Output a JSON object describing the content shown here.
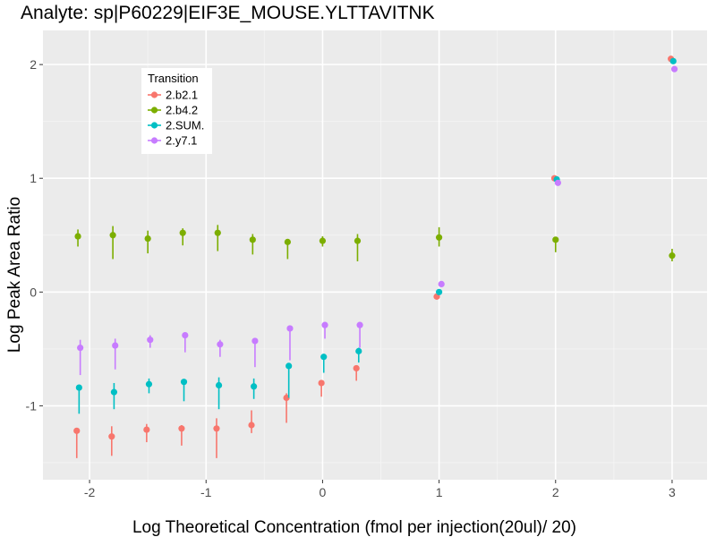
{
  "chart_data": {
    "type": "scatter",
    "title": "Analyte: sp|P60229|EIF3E_MOUSE.YLTTAVITNK",
    "xlabel": "Log Theoretical Concentration (fmol per injection(20ul)/ 20)",
    "ylabel": "Log Peak Area Ratio",
    "xlim": [
      -2.4,
      3.3
    ],
    "ylim": [
      -1.65,
      2.3
    ],
    "x_ticks": [
      -2,
      -1,
      0,
      1,
      2,
      3
    ],
    "x_tick_labels": [
      "-2",
      "-1",
      "0",
      "1",
      "2",
      "3"
    ],
    "y_ticks": [
      -1,
      0,
      1,
      2
    ],
    "y_tick_labels": [
      "-1",
      "0",
      "1",
      "2"
    ],
    "x_minor_ticks": [
      -1.5,
      -0.5,
      0.5,
      1.5,
      2.5
    ],
    "y_minor_ticks": [
      -1.5,
      -0.5,
      0.5,
      1.5
    ],
    "grid": true,
    "legend": {
      "title": "Transition",
      "placement": "top-left"
    },
    "series": [
      {
        "name": "2.b2.1",
        "color": "#F8766D",
        "points": [
          {
            "x": -2.11,
            "y": -1.22,
            "lo": -1.46,
            "hi": -1.22
          },
          {
            "x": -1.81,
            "y": -1.27,
            "lo": -1.44,
            "hi": -1.18
          },
          {
            "x": -1.51,
            "y": -1.21,
            "lo": -1.32,
            "hi": -1.16
          },
          {
            "x": -1.21,
            "y": -1.2,
            "lo": -1.35,
            "hi": -1.17
          },
          {
            "x": -0.91,
            "y": -1.2,
            "lo": -1.46,
            "hi": -1.11
          },
          {
            "x": -0.61,
            "y": -1.17,
            "lo": -1.24,
            "hi": -1.04
          },
          {
            "x": -0.31,
            "y": -0.93,
            "lo": -1.15,
            "hi": -0.89
          },
          {
            "x": -0.01,
            "y": -0.8,
            "lo": -0.92,
            "hi": -0.78
          },
          {
            "x": 0.29,
            "y": -0.67,
            "lo": -0.78,
            "hi": -0.65
          },
          {
            "x": 0.98,
            "y": -0.04,
            "lo": -0.06,
            "hi": -0.02
          },
          {
            "x": 1.99,
            "y": 1.0,
            "lo": 0.99,
            "hi": 1.01
          },
          {
            "x": 2.99,
            "y": 2.05,
            "lo": 2.04,
            "hi": 2.06
          }
        ]
      },
      {
        "name": "2.b4.2",
        "color": "#7CAE00",
        "points": [
          {
            "x": -2.1,
            "y": 0.49,
            "lo": 0.4,
            "hi": 0.55
          },
          {
            "x": -1.8,
            "y": 0.5,
            "lo": 0.29,
            "hi": 0.58
          },
          {
            "x": -1.5,
            "y": 0.47,
            "lo": 0.34,
            "hi": 0.54
          },
          {
            "x": -1.2,
            "y": 0.52,
            "lo": 0.41,
            "hi": 0.56
          },
          {
            "x": -0.9,
            "y": 0.52,
            "lo": 0.36,
            "hi": 0.59
          },
          {
            "x": -0.6,
            "y": 0.46,
            "lo": 0.33,
            "hi": 0.51
          },
          {
            "x": -0.3,
            "y": 0.44,
            "lo": 0.29,
            "hi": 0.46
          },
          {
            "x": 0.0,
            "y": 0.45,
            "lo": 0.4,
            "hi": 0.49
          },
          {
            "x": 0.3,
            "y": 0.45,
            "lo": 0.27,
            "hi": 0.51
          },
          {
            "x": 1.0,
            "y": 0.48,
            "lo": 0.4,
            "hi": 0.57
          },
          {
            "x": 2.0,
            "y": 0.46,
            "lo": 0.35,
            "hi": 0.48
          },
          {
            "x": 3.0,
            "y": 0.32,
            "lo": 0.27,
            "hi": 0.38
          }
        ]
      },
      {
        "name": "2.SUM.",
        "color": "#00BFC4",
        "points": [
          {
            "x": -2.09,
            "y": -0.84,
            "lo": -1.07,
            "hi": -0.82
          },
          {
            "x": -1.79,
            "y": -0.88,
            "lo": -1.03,
            "hi": -0.8
          },
          {
            "x": -1.49,
            "y": -0.81,
            "lo": -0.89,
            "hi": -0.76
          },
          {
            "x": -1.19,
            "y": -0.79,
            "lo": -0.96,
            "hi": -0.77
          },
          {
            "x": -0.89,
            "y": -0.82,
            "lo": -1.03,
            "hi": -0.75
          },
          {
            "x": -0.59,
            "y": -0.83,
            "lo": -0.94,
            "hi": -0.76
          },
          {
            "x": -0.29,
            "y": -0.65,
            "lo": -0.93,
            "hi": -0.63
          },
          {
            "x": 0.01,
            "y": -0.57,
            "lo": -0.71,
            "hi": -0.55
          },
          {
            "x": 0.31,
            "y": -0.52,
            "lo": -0.62,
            "hi": -0.49
          },
          {
            "x": 1.0,
            "y": 0.0,
            "lo": -0.02,
            "hi": 0.01
          },
          {
            "x": 2.01,
            "y": 0.99,
            "lo": 0.98,
            "hi": 1.0
          },
          {
            "x": 3.01,
            "y": 2.03,
            "lo": 2.02,
            "hi": 2.04
          }
        ]
      },
      {
        "name": "2.y7.1",
        "color": "#C77CFF",
        "points": [
          {
            "x": -2.08,
            "y": -0.49,
            "lo": -0.73,
            "hi": -0.42
          },
          {
            "x": -1.78,
            "y": -0.47,
            "lo": -0.68,
            "hi": -0.41
          },
          {
            "x": -1.48,
            "y": -0.42,
            "lo": -0.49,
            "hi": -0.38
          },
          {
            "x": -1.18,
            "y": -0.38,
            "lo": -0.53,
            "hi": -0.37
          },
          {
            "x": -0.88,
            "y": -0.46,
            "lo": -0.57,
            "hi": -0.42
          },
          {
            "x": -0.58,
            "y": -0.43,
            "lo": -0.66,
            "hi": -0.42
          },
          {
            "x": -0.28,
            "y": -0.32,
            "lo": -0.6,
            "hi": -0.31
          },
          {
            "x": 0.02,
            "y": -0.29,
            "lo": -0.41,
            "hi": -0.28
          },
          {
            "x": 0.32,
            "y": -0.29,
            "lo": -0.49,
            "hi": -0.27
          },
          {
            "x": 1.02,
            "y": 0.07,
            "lo": 0.05,
            "hi": 0.08
          },
          {
            "x": 2.02,
            "y": 0.96,
            "lo": 0.95,
            "hi": 0.97
          },
          {
            "x": 3.02,
            "y": 1.96,
            "lo": 1.95,
            "hi": 1.97
          }
        ]
      }
    ]
  }
}
